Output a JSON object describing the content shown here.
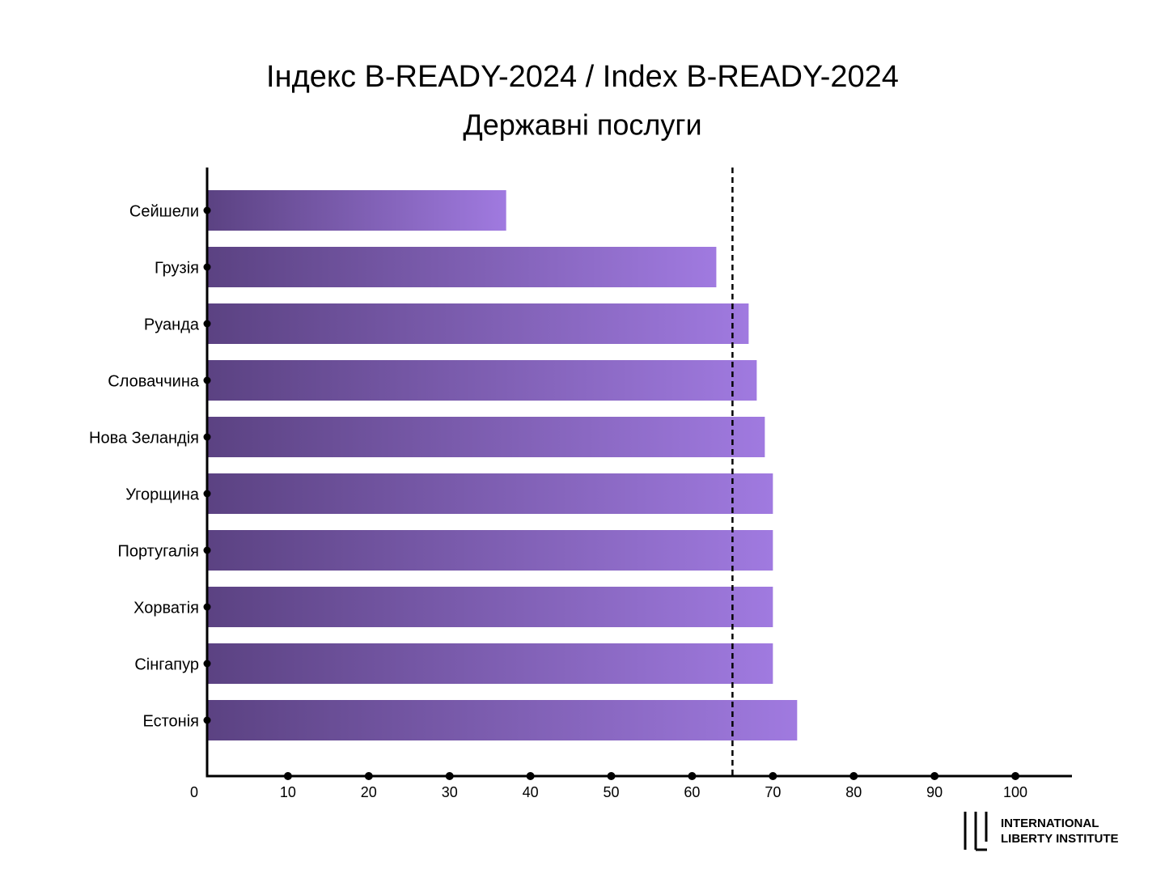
{
  "chart_data": {
    "type": "bar",
    "orientation": "horizontal",
    "title": "Індекс B-READY-2024 / Index B-READY-2024",
    "subtitle": "Державні послуги",
    "categories": [
      "Сейшели",
      "Грузія",
      "Руанда",
      "Словаччина",
      "Нова Зеландія",
      "Угорщина",
      "Португалія",
      "Хорватія",
      "Сінгапур",
      "Естонія"
    ],
    "values": [
      37,
      63,
      67,
      68,
      69,
      70,
      70,
      70,
      70,
      73
    ],
    "colors": [
      "#5b4282",
      "#a07ae0"
    ],
    "reference_line": 65,
    "xlim": [
      0,
      107
    ],
    "xticks": [
      0,
      10,
      20,
      30,
      40,
      50,
      60,
      70,
      80,
      90,
      100
    ]
  },
  "logo": {
    "line1": "INTERNATIONAL",
    "line2": "LIBERTY INSTITUTE"
  }
}
